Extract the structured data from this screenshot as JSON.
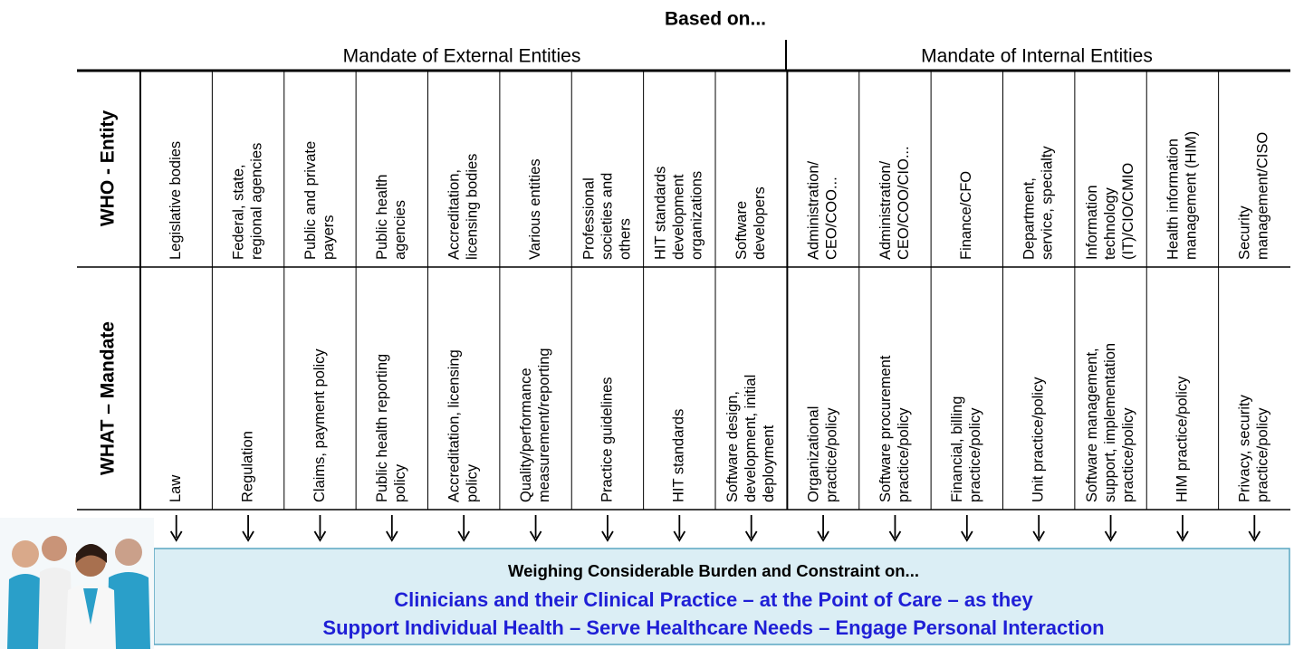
{
  "header": {
    "title": "Based on...",
    "groups": [
      "Mandate of External Entities",
      "Mandate of Internal Entities"
    ]
  },
  "row_labels": [
    "WHO - Entity",
    "WHAT – Mandate"
  ],
  "columns": [
    {
      "who": [
        "Legislative bodies"
      ],
      "what": [
        "Law"
      ]
    },
    {
      "who": [
        "Federal, state,",
        "regional  agencies"
      ],
      "what": [
        "Regulation"
      ]
    },
    {
      "who": [
        "Public and private",
        "payers"
      ],
      "what": [
        "Claims, payment policy"
      ]
    },
    {
      "who": [
        "Public health",
        "agencies"
      ],
      "what": [
        "Public health reporting",
        "policy"
      ]
    },
    {
      "who": [
        "Accreditation,",
        "licensing bodies"
      ],
      "what": [
        "Accreditation, licensing",
        "policy"
      ]
    },
    {
      "who": [
        "Various entities"
      ],
      "what": [
        "Quality/performance",
        "measurement/reporting"
      ]
    },
    {
      "who": [
        "Professional",
        "societies and",
        "others"
      ],
      "what": [
        "Practice guidelines"
      ]
    },
    {
      "who": [
        "HIT standards",
        "development",
        "organizations"
      ],
      "what": [
        "HIT standards"
      ]
    },
    {
      "who": [
        "Software",
        "developers"
      ],
      "what": [
        "Software design,",
        "development, initial",
        "deployment"
      ]
    },
    {
      "who": [
        "Administration/",
        "CEO/COO..."
      ],
      "what": [
        "Organizational",
        "practice/policy"
      ]
    },
    {
      "who": [
        "Administration/",
        "CEO/COO/CIO..."
      ],
      "what": [
        "Software procurement",
        "practice/policy"
      ]
    },
    {
      "who": [
        "Finance/CFO"
      ],
      "what": [
        "Financial, billing",
        "practice/policy"
      ]
    },
    {
      "who": [
        "Department,",
        "service, specialty"
      ],
      "what": [
        "Unit practice/policy"
      ]
    },
    {
      "who": [
        "Information",
        "technology",
        "(IT)/CIO/CMIO"
      ],
      "what": [
        "Software management,",
        "support, implementation",
        "practice/policy"
      ]
    },
    {
      "who": [
        "Health information",
        "management (HIM)"
      ],
      "what": [
        "HIM practice/policy"
      ]
    },
    {
      "who": [
        "Security",
        "management/CISO"
      ],
      "what": [
        "Privacy, security",
        "practice/policy"
      ]
    }
  ],
  "footer": {
    "lead": "Weighing Considerable Burden and Constraint on...",
    "lines": [
      "Clinicians and their Clinical Practice – at the Point of Care – as they",
      "Support Individual Health – Serve Healthcare Needs – Engage Personal Interaction"
    ]
  }
}
